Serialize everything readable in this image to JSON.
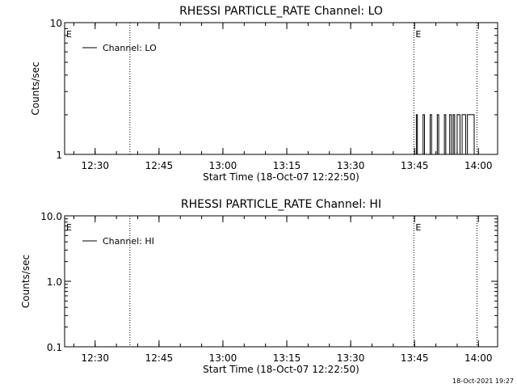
{
  "chart_data": [
    {
      "type": "line",
      "title": "RHESSI PARTICLE_RATE Channel: LO",
      "xlabel": "Start Time (18-Oct-07 12:22:50)",
      "ylabel": "Counts/sec",
      "yscale": "log",
      "ylim": [
        1,
        10
      ],
      "yticks": [
        "1",
        "10"
      ],
      "xlim": [
        "12:22:50",
        "14:04:30"
      ],
      "xticks": [
        "12:30",
        "12:45",
        "13:00",
        "13:15",
        "13:30",
        "13:45",
        "14:00"
      ],
      "legend": "upper-left",
      "series": [
        {
          "name": "Channel: LO",
          "x": [
            "13:45:05",
            "13:45:25",
            "13:45:40",
            "13:46:05",
            "13:46:40",
            "13:47:00",
            "13:47:20",
            "13:47:45",
            "13:48:20",
            "13:48:40",
            "13:49:00",
            "13:49:25",
            "13:50:00",
            "13:50:20",
            "13:50:40",
            "13:51:05",
            "13:51:40",
            "13:52:00",
            "13:52:20",
            "13:52:45",
            "13:53:15",
            "13:53:40",
            "13:54:05",
            "13:54:25",
            "13:55:00",
            "13:55:20",
            "13:55:40",
            "13:56:10",
            "13:56:40",
            "13:57:00",
            "13:57:25",
            "13:58:00",
            "13:58:40",
            "13:59:00",
            "13:59:20",
            "13:59:40"
          ],
          "values": [
            1,
            2,
            1,
            1,
            1,
            2,
            1,
            1,
            1,
            2,
            1,
            1,
            1,
            2,
            1,
            1,
            1,
            2,
            1,
            1,
            2,
            1,
            2,
            1,
            2,
            2,
            1,
            2,
            2,
            1,
            2,
            2,
            2,
            1,
            1,
            1
          ]
        }
      ],
      "annotations": [
        {
          "type": "vline",
          "x": "12:38:10"
        },
        {
          "type": "vline",
          "x": "13:44:50"
        },
        {
          "type": "vline",
          "x": "13:59:40"
        },
        {
          "type": "text",
          "x": "12:22:50",
          "text": "E"
        },
        {
          "type": "text",
          "x": "13:44:50",
          "text": "E"
        }
      ]
    },
    {
      "type": "line",
      "title": "RHESSI PARTICLE_RATE Channel: HI",
      "xlabel": "Start Time (18-Oct-07 12:22:50)",
      "ylabel": "Counts/sec",
      "yscale": "log",
      "ylim": [
        0.1,
        10
      ],
      "yticks": [
        "0.1",
        "1.0",
        "10.0"
      ],
      "xlim": [
        "12:22:50",
        "14:04:30"
      ],
      "xticks": [
        "12:30",
        "12:45",
        "13:00",
        "13:15",
        "13:30",
        "13:45",
        "14:00"
      ],
      "legend": "upper-left",
      "series": [
        {
          "name": "Channel: HI",
          "x": [],
          "values": []
        }
      ],
      "annotations": [
        {
          "type": "vline",
          "x": "12:38:10"
        },
        {
          "type": "vline",
          "x": "13:44:50"
        },
        {
          "type": "vline",
          "x": "13:59:40"
        },
        {
          "type": "text",
          "x": "12:22:50",
          "text": "E"
        },
        {
          "type": "text",
          "x": "13:44:50",
          "text": "E"
        }
      ]
    }
  ],
  "footer": {
    "timestamp": "18-Oct-2021 19:27"
  },
  "colors": {
    "background": "#ffffff",
    "foreground": "#000000"
  }
}
